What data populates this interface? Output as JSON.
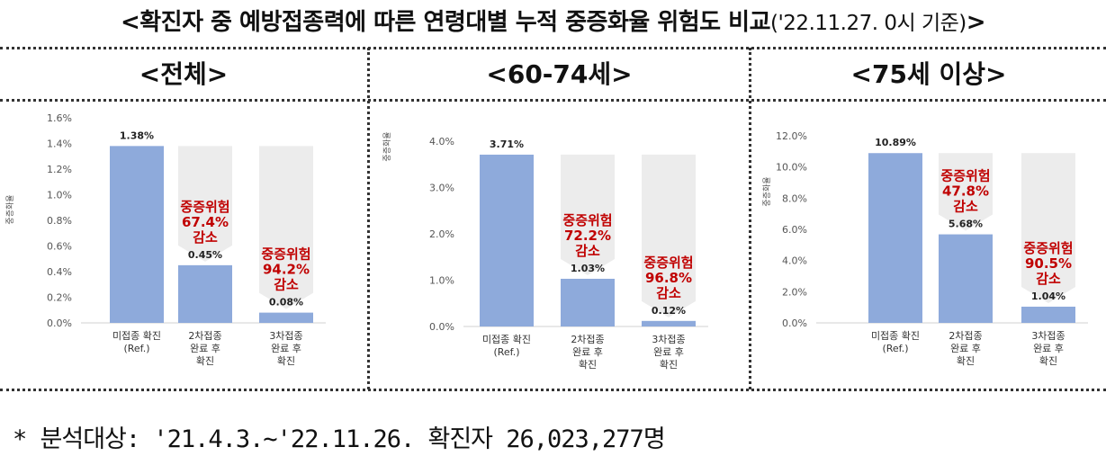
{
  "title": {
    "main": "<확진자 중 예방접종력에 따른 연령대별 누적 중증화율 위험도 비교",
    "date": "('22.11.27. 0시 기준)",
    "close": ">"
  },
  "footnote": "* 분석대상: '21.4.3.∼'22.11.26. 확진자 26,023,277명",
  "colors": {
    "bar": "#8eaadb",
    "background_bar": "#ececec",
    "reduction_text": "#c00000"
  },
  "chart_data": [
    {
      "type": "bar",
      "panel": "<전체>",
      "ylabel": "중증화율",
      "ylim": [
        0,
        1.6
      ],
      "yticks": [
        "0.0%",
        "0.2%",
        "0.4%",
        "0.6%",
        "0.8%",
        "1.0%",
        "1.2%",
        "1.4%",
        "1.6%"
      ],
      "categories": [
        [
          "미접종 확진",
          "(Ref.)"
        ],
        [
          "2차접종",
          "완료 후",
          "확진"
        ],
        [
          "3차접종",
          "완료 후",
          "확진"
        ]
      ],
      "values": [
        1.38,
        0.45,
        0.08
      ],
      "value_labels": [
        "1.38%",
        "0.45%",
        "0.08%"
      ],
      "reductions": [
        null,
        [
          "중증위험",
          "67.4%",
          "감소"
        ],
        [
          "중증위험",
          "94.2%",
          "감소"
        ]
      ]
    },
    {
      "type": "bar",
      "panel": "<60-74세>",
      "ylabel": "중증화율",
      "ylim": [
        0,
        4.0
      ],
      "yticks": [
        "0.0%",
        "1.0%",
        "2.0%",
        "3.0%",
        "4.0%"
      ],
      "categories": [
        [
          "미접종 확진",
          "(Ref.)"
        ],
        [
          "2차접종",
          "완료 후",
          "확진"
        ],
        [
          "3차접종",
          "완료 후",
          "확진"
        ]
      ],
      "values": [
        3.71,
        1.03,
        0.12
      ],
      "value_labels": [
        "3.71%",
        "1.03%",
        "0.12%"
      ],
      "reductions": [
        null,
        [
          "중증위험",
          "72.2%",
          "감소"
        ],
        [
          "중증위험",
          "96.8%",
          "감소"
        ]
      ]
    },
    {
      "type": "bar",
      "panel": "<75세 이상>",
      "ylabel": "중증화율",
      "ylim": [
        0,
        12.0
      ],
      "yticks": [
        "0.0%",
        "2.0%",
        "4.0%",
        "6.0%",
        "8.0%",
        "10.0%",
        "12.0%"
      ],
      "categories": [
        [
          "미접종 확진",
          "(Ref.)"
        ],
        [
          "2차접종",
          "완료 후",
          "확진"
        ],
        [
          "3차접종",
          "완료 후",
          "확진"
        ]
      ],
      "values": [
        10.89,
        5.68,
        1.04
      ],
      "value_labels": [
        "10.89%",
        "5.68%",
        "1.04%"
      ],
      "reductions": [
        null,
        [
          "중증위험",
          "47.8%",
          "감소"
        ],
        [
          "중증위험",
          "90.5%",
          "감소"
        ]
      ]
    }
  ]
}
